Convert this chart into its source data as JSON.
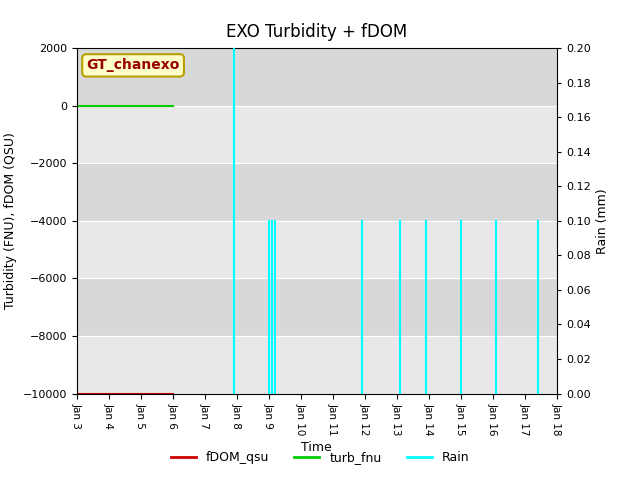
{
  "title": "EXO Turbidity + fDOM",
  "xlabel": "Time",
  "ylabel_left": "Turbidity (FNU), fDOM (QSU)",
  "ylabel_right": "Rain (mm)",
  "ylim_left": [
    -10000,
    2000
  ],
  "ylim_right": [
    0.0,
    0.2
  ],
  "bg_color": "#e8e8e8",
  "annotation_text": "GT_chanexo",
  "annotation_color": "#990000",
  "annotation_bg": "#ffffcc",
  "annotation_edge": "#b8a000",
  "fdom_color": "#cc0000",
  "turb_color": "#00cc00",
  "rain_color": "cyan",
  "fdom_x_start": 3.0,
  "fdom_x_end": 6.0,
  "fdom_y": -10000,
  "turb_x_start": 3.0,
  "turb_x_end": 6.0,
  "turb_y": 0,
  "rain_spikes": [
    {
      "x": 7.9,
      "height": 0.2
    },
    {
      "x": 9.0,
      "height": 0.1
    },
    {
      "x": 9.1,
      "height": 0.1
    },
    {
      "x": 9.2,
      "height": 0.1
    },
    {
      "x": 11.9,
      "height": 0.1
    },
    {
      "x": 13.1,
      "height": 0.1
    },
    {
      "x": 13.9,
      "height": 0.1
    },
    {
      "x": 15.0,
      "height": 0.1
    },
    {
      "x": 16.1,
      "height": 0.1
    },
    {
      "x": 17.4,
      "height": 0.1
    }
  ],
  "xtick_positions": [
    3,
    4,
    5,
    6,
    7,
    8,
    9,
    10,
    11,
    12,
    13,
    14,
    15,
    16,
    17,
    18
  ],
  "xtick_labels": [
    "Jan 3",
    "Jan 4",
    "Jan 5",
    "Jan 6",
    "Jan 7",
    "Jan 8",
    "Jan 9",
    "Jan 10",
    "Jan 11",
    "Jan 12",
    "Jan 13",
    "Jan 14",
    "Jan 15",
    "Jan 16",
    "Jan 17",
    "Jan 18"
  ],
  "ytick_left": [
    -10000,
    -8000,
    -6000,
    -4000,
    -2000,
    0,
    2000
  ],
  "ytick_right": [
    0.0,
    0.02,
    0.04,
    0.06,
    0.08,
    0.1,
    0.12,
    0.14,
    0.16,
    0.18,
    0.2
  ],
  "xlim": [
    3,
    18
  ],
  "legend_labels": [
    "fDOM_qsu",
    "turb_fnu",
    "Rain"
  ],
  "legend_colors": [
    "#cc0000",
    "#00cc00",
    "cyan"
  ],
  "grid_colors": [
    "#d0d0d0",
    "#c8c8c8"
  ]
}
